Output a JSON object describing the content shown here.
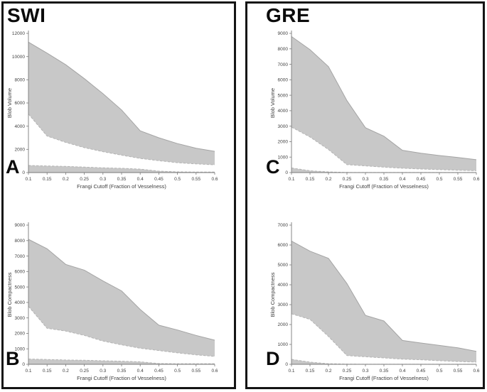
{
  "figure": {
    "panels": [
      {
        "title": "SWI"
      },
      {
        "title": "GRE"
      }
    ],
    "legend": "none"
  },
  "colors": {
    "band_fill": "#c8c8c8",
    "upper_line": "#a4a4a4",
    "dashed_line": "#b4b4b4",
    "axis": "#7a7a7a",
    "tick_text": "#404040",
    "frame": "#141414",
    "background": "#ffffff"
  },
  "chart_data": [
    {
      "panel_label": "A",
      "group": "SWI",
      "type": "area",
      "title": "",
      "xlabel": "Frangi Cutoff (Fraction of Vesselness)",
      "ylabel": "Blob Volume",
      "x": [
        0.1,
        0.15,
        0.2,
        0.25,
        0.3,
        0.35,
        0.4,
        0.45,
        0.5,
        0.55,
        0.6
      ],
      "xtick_labels": [
        "0.1",
        "0.15",
        "0.2",
        "0.25",
        "0.3",
        "0.35",
        "0.4",
        "0.45",
        "0.5",
        "0.55",
        "0.6"
      ],
      "xlim": [
        0.1,
        0.6
      ],
      "ylim": [
        0,
        12000
      ],
      "ytick_step": 2000,
      "grid": false,
      "series": [
        {
          "name": "upper envelope (solid)",
          "values": [
            11250,
            10300,
            9300,
            8100,
            6800,
            5400,
            3600,
            3000,
            2500,
            2100,
            1830
          ]
        },
        {
          "name": "lower envelope (dashed)",
          "values": [
            5050,
            3150,
            2600,
            2150,
            1800,
            1500,
            1220,
            1020,
            850,
            750,
            670
          ]
        },
        {
          "name": "baseline band top (dashed, filled to 0)",
          "values": [
            610,
            570,
            530,
            470,
            410,
            370,
            300,
            120,
            60,
            40,
            40
          ]
        }
      ]
    },
    {
      "panel_label": "B",
      "group": "SWI",
      "type": "area",
      "title": "",
      "xlabel": "Frangi Cutoff (Fraction of Vesselness)",
      "ylabel": "Blob Compactness",
      "x": [
        0.1,
        0.15,
        0.2,
        0.25,
        0.3,
        0.35,
        0.4,
        0.45,
        0.5,
        0.55,
        0.6
      ],
      "xtick_labels": [
        "0.1",
        "0.15",
        "0.2",
        "0.25",
        "0.3",
        "0.35",
        "0.4",
        "0.45",
        "0.5",
        "0.55",
        "0.6"
      ],
      "xlim": [
        0.1,
        0.6
      ],
      "ylim": [
        0,
        9000
      ],
      "ytick_step": 1000,
      "grid": false,
      "series": [
        {
          "name": "upper envelope (solid)",
          "values": [
            8080,
            7470,
            6460,
            6090,
            5390,
            4750,
            3550,
            2530,
            2220,
            1870,
            1560
          ]
        },
        {
          "name": "lower envelope (dashed)",
          "values": [
            3750,
            2330,
            2150,
            1870,
            1500,
            1260,
            1040,
            890,
            740,
            610,
            510
          ]
        },
        {
          "name": "baseline band top (dashed, filled to 0)",
          "values": [
            340,
            310,
            280,
            260,
            230,
            200,
            160,
            50,
            30,
            30,
            30
          ]
        }
      ]
    },
    {
      "panel_label": "C",
      "group": "GRE",
      "type": "area",
      "title": "",
      "xlabel": "Frangi Cutoff (Fraction of Vesselness)",
      "ylabel": "Blob Volume",
      "x": [
        0.1,
        0.15,
        0.2,
        0.25,
        0.3,
        0.35,
        0.4,
        0.45,
        0.5,
        0.55,
        0.6
      ],
      "xtick_labels": [
        "0.1",
        "0.15",
        "0.2",
        "0.25",
        "0.3",
        "0.35",
        "0.4",
        "0.45",
        "0.5",
        "0.55",
        "0.6"
      ],
      "xlim": [
        0.1,
        0.6
      ],
      "ylim": [
        0,
        9000
      ],
      "ytick_step": 1000,
      "grid": false,
      "series": [
        {
          "name": "upper envelope (solid)",
          "values": [
            8800,
            7950,
            6850,
            4650,
            2900,
            2350,
            1440,
            1250,
            1100,
            980,
            830
          ]
        },
        {
          "name": "lower envelope (dashed)",
          "values": [
            2940,
            2300,
            1490,
            510,
            430,
            350,
            280,
            230,
            190,
            150,
            120
          ]
        },
        {
          "name": "baseline band top (dashed, filled to 0)",
          "values": [
            300,
            120,
            40,
            10,
            5,
            5,
            5,
            5,
            5,
            5,
            5
          ]
        }
      ]
    },
    {
      "panel_label": "D",
      "group": "GRE",
      "type": "area",
      "title": "",
      "xlabel": "Frangi Cutoff (Fraction of Vesselness)",
      "ylabel": "Blob Compactness",
      "x": [
        0.1,
        0.15,
        0.2,
        0.25,
        0.3,
        0.35,
        0.4,
        0.45,
        0.5,
        0.55,
        0.6
      ],
      "xtick_labels": [
        "0.1",
        "0.15",
        "0.2",
        "0.25",
        "0.3",
        "0.35",
        "0.4",
        "0.45",
        "0.5",
        "0.55",
        "0.6"
      ],
      "xlim": [
        0.1,
        0.6
      ],
      "ylim": [
        0,
        7000
      ],
      "ytick_step": 1000,
      "grid": false,
      "series": [
        {
          "name": "upper envelope (solid)",
          "values": [
            6200,
            5690,
            5330,
            4060,
            2460,
            2180,
            1200,
            1070,
            950,
            830,
            650
          ]
        },
        {
          "name": "lower envelope (dashed)",
          "values": [
            2540,
            2260,
            1400,
            440,
            380,
            320,
            260,
            230,
            180,
            140,
            110
          ]
        },
        {
          "name": "baseline band top (dashed, filled to 0)",
          "values": [
            250,
            110,
            30,
            10,
            5,
            5,
            5,
            5,
            5,
            5,
            5
          ]
        }
      ]
    }
  ]
}
